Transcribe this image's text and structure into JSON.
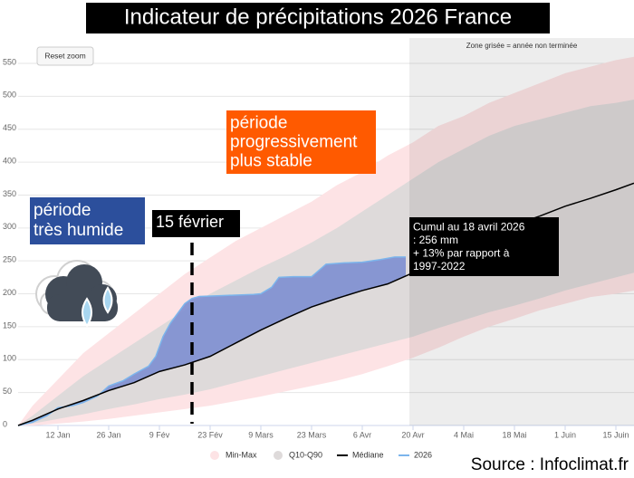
{
  "chart_data": {
    "type": "line",
    "title": "Indicateur de précipitations 2026 France",
    "reset_button": "Reset zoom",
    "shade_note": "Zone grisée = année non terminée",
    "source": "Source : Infoclimat.fr",
    "xlim": [
      0,
      170
    ],
    "ylim": [
      0,
      550
    ],
    "yticks": [
      0,
      50,
      100,
      150,
      200,
      250,
      300,
      350,
      400,
      450,
      500,
      550
    ],
    "xticks": [
      {
        "value": 11,
        "label": "12 Jan"
      },
      {
        "value": 25,
        "label": "26 Jan"
      },
      {
        "value": 39,
        "label": "9 Fév"
      },
      {
        "value": 53,
        "label": "23 Fév"
      },
      {
        "value": 67,
        "label": "9 Mars"
      },
      {
        "value": 81,
        "label": "23 Mars"
      },
      {
        "value": 95,
        "label": "6 Avr"
      },
      {
        "value": 109,
        "label": "20 Avr"
      },
      {
        "value": 123,
        "label": "4 Mai"
      },
      {
        "value": 137,
        "label": "18 Mai"
      },
      {
        "value": 151,
        "label": "1 Juin"
      },
      {
        "value": 165,
        "label": "15 Juin"
      }
    ],
    "grid": true,
    "x": [
      0,
      4,
      11,
      18,
      25,
      32,
      39,
      46,
      53,
      60,
      67,
      74,
      81,
      88,
      95,
      102,
      109,
      116,
      123,
      130,
      137,
      144,
      151,
      158,
      165,
      170
    ],
    "bands": [
      {
        "name": "Min-Max",
        "color": "#fde3e5",
        "low": [
          0,
          0,
          3,
          6,
          10,
          15,
          20,
          25,
          30,
          37,
          44,
          52,
          60,
          68,
          78,
          90,
          103,
          118,
          135,
          150,
          162,
          175,
          185,
          195,
          200,
          205
        ],
        "high": [
          0,
          30,
          70,
          110,
          140,
          170,
          200,
          230,
          255,
          280,
          300,
          320,
          340,
          365,
          385,
          410,
          430,
          455,
          470,
          490,
          505,
          520,
          535,
          545,
          555,
          560
        ]
      },
      {
        "name": "Q10-Q90",
        "color": "#dedada",
        "low": [
          0,
          3,
          10,
          17,
          25,
          32,
          40,
          47,
          55,
          65,
          75,
          85,
          95,
          105,
          115,
          125,
          135,
          148,
          160,
          172,
          182,
          193,
          205,
          215,
          225,
          232
        ],
        "high": [
          0,
          15,
          45,
          75,
          100,
          125,
          150,
          175,
          200,
          220,
          240,
          258,
          278,
          300,
          325,
          350,
          375,
          400,
          420,
          440,
          455,
          465,
          475,
          485,
          490,
          495
        ]
      }
    ],
    "series": [
      {
        "name": "Médiane",
        "color": "#000000",
        "values": [
          0,
          8,
          25,
          38,
          53,
          65,
          82,
          92,
          105,
          125,
          145,
          163,
          180,
          193,
          205,
          215,
          232,
          255,
          275,
          290,
          305,
          318,
          333,
          345,
          358,
          368
        ]
      },
      {
        "name": "2026",
        "color": "#7cb5ec",
        "fill": "#7d8ed0",
        "x": [
          0,
          4,
          8,
          11,
          15,
          18,
          22,
          25,
          29,
          32,
          36,
          38,
          40,
          42,
          44,
          46,
          48,
          50,
          55,
          60,
          65,
          67,
          70,
          72,
          76,
          81,
          85,
          90,
          95,
          100,
          104,
          107
        ],
        "values": [
          0,
          5,
          15,
          27,
          30,
          35,
          45,
          60,
          68,
          78,
          90,
          105,
          135,
          155,
          170,
          185,
          193,
          196,
          197,
          198,
          199,
          200,
          210,
          225,
          226,
          226,
          245,
          247,
          248,
          252,
          256,
          256
        ]
      }
    ],
    "annotations": [
      {
        "lines": [
          "période",
          "très humide"
        ],
        "color": "#2c4f9c"
      },
      {
        "lines": [
          "période",
          "progressivement",
          "plus stable"
        ],
        "color": "#ff5a00"
      },
      {
        "lines": [
          "15 février"
        ],
        "color": "#000000"
      },
      {
        "lines": [
          "Cumul au 18 avril 2026",
          ": 256 mm",
          "+ 13% par rapport à",
          "1997-2022"
        ],
        "color": "#000000"
      }
    ]
  }
}
